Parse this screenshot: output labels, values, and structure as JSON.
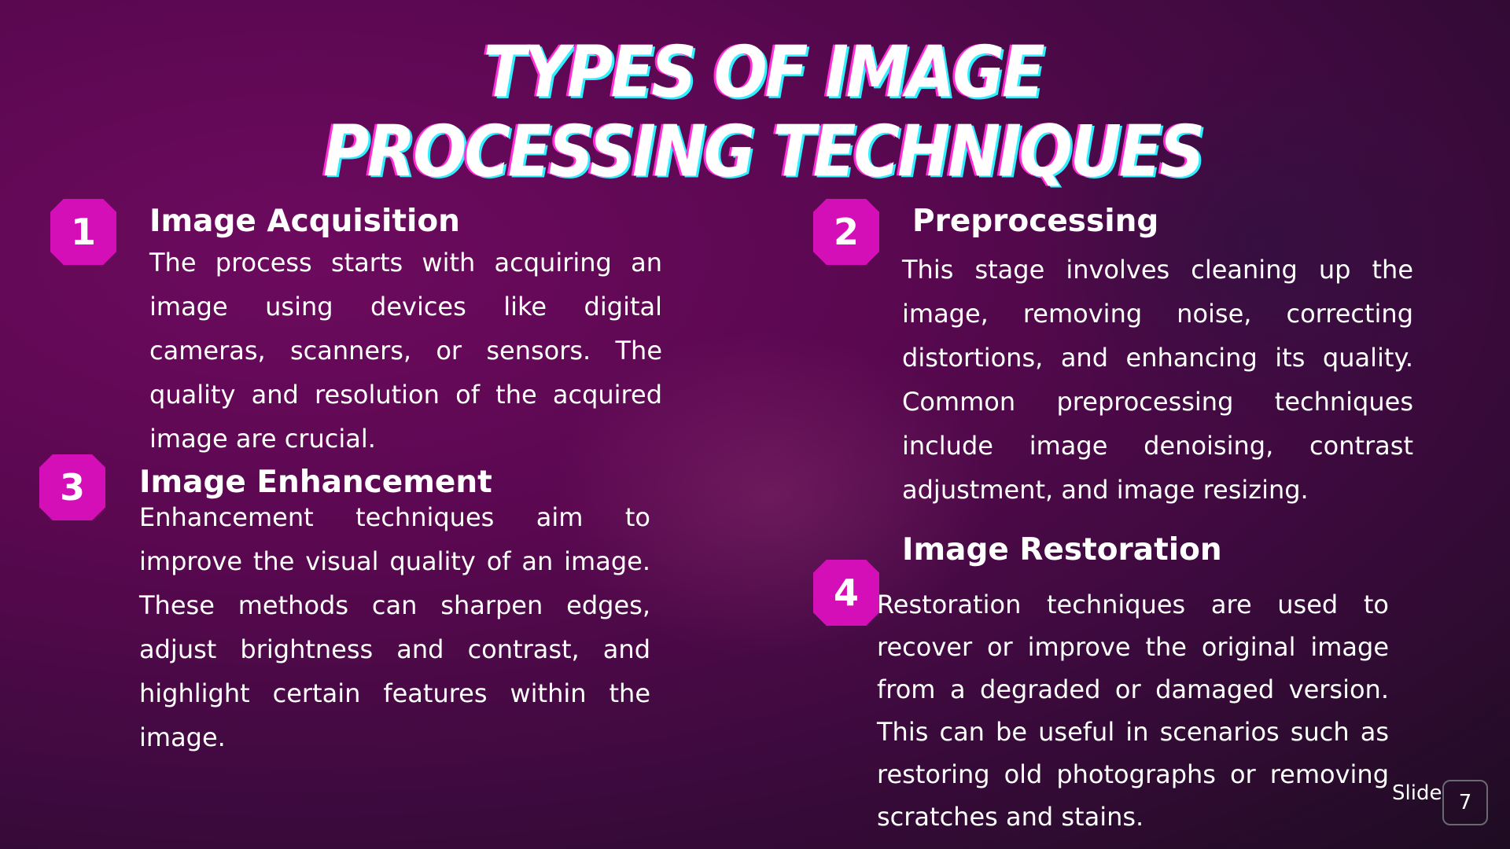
{
  "title": "TYPES OF IMAGE PROCESSING TECHNIQUES",
  "sections": [
    {
      "number": "1",
      "heading": "Image Acquisition",
      "text": "The process starts with acquiring an image using devices like digital cameras, scanners, or sensors. The quality and resolution of the acquired image are crucial."
    },
    {
      "number": "2",
      "heading": "Preprocessing",
      "text": "This stage involves cleaning up the image, removing noise, correcting distortions, and enhancing its quality. Common preprocessing techniques include image denoising, contrast adjustment, and image resizing."
    },
    {
      "number": "3",
      "heading": "Image Enhancement",
      "text": "Enhancement techniques aim to improve the visual quality of an image. These methods can sharpen edges, adjust brightness and contrast, and highlight certain features within the image."
    },
    {
      "number": "4",
      "heading": "Image Restoration",
      "text": "Restoration techniques are used to recover or improve the original image from a degraded or damaged version. This can be useful in scenarios such as restoring old photographs or removing scratches and stains."
    }
  ],
  "footer": {
    "slide_label": "Slide",
    "slide_number": "7"
  }
}
